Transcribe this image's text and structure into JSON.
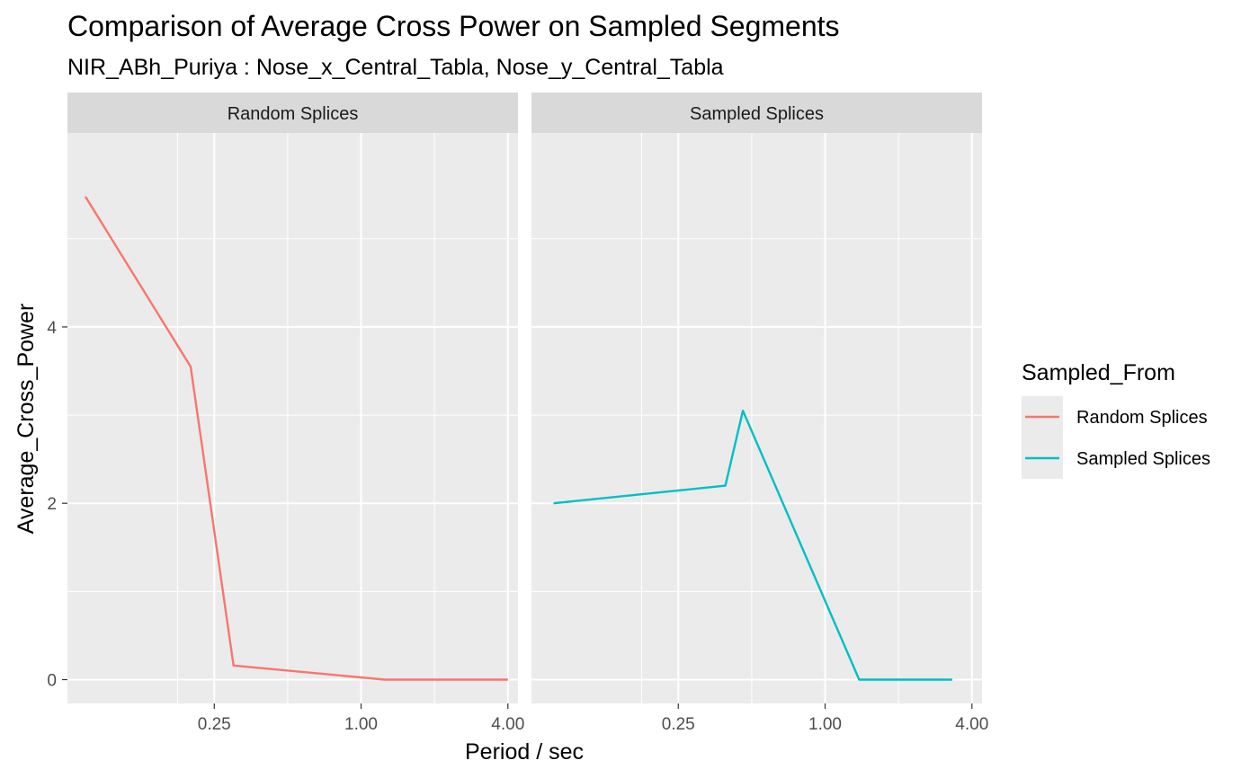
{
  "chart_data": {
    "type": "line",
    "title": "Comparison of Average Cross Power on Sampled Segments",
    "subtitle": "NIR_ABh_Puriya : Nose_x_Central_Tabla, Nose_y_Central_Tabla",
    "xlabel": "Period / sec",
    "ylabel": "Average_Cross_Power",
    "x_scale": "log2",
    "x_ticks": [
      0.25,
      1.0,
      4.0
    ],
    "x_tick_labels": [
      "0.25",
      "1.00",
      "4.00"
    ],
    "xlim": [
      0.0625,
      4.4
    ],
    "y_ticks": [
      0,
      2,
      4
    ],
    "y_tick_labels": [
      "0",
      "2",
      "4"
    ],
    "ylim": [
      -0.27,
      6.2
    ],
    "grid": true,
    "legend": {
      "title": "Sampled_From",
      "position": "right",
      "entries": [
        "Random Splices",
        "Sampled Splices"
      ]
    },
    "facets": [
      "Random Splices",
      "Sampled Splices"
    ],
    "series": [
      {
        "name": "Random Splices",
        "facet": "Random Splices",
        "color": "#F8766D",
        "x": [
          0.074,
          0.2,
          0.3,
          1.25,
          4.0
        ],
        "y": [
          5.48,
          3.55,
          0.16,
          0.0,
          0.0
        ]
      },
      {
        "name": "Sampled Splices",
        "facet": "Sampled Splices",
        "color": "#00BFC4",
        "x": [
          0.077,
          0.39,
          0.46,
          1.38,
          3.32
        ],
        "y": [
          2.0,
          2.2,
          3.05,
          0.0,
          0.0
        ]
      }
    ]
  }
}
